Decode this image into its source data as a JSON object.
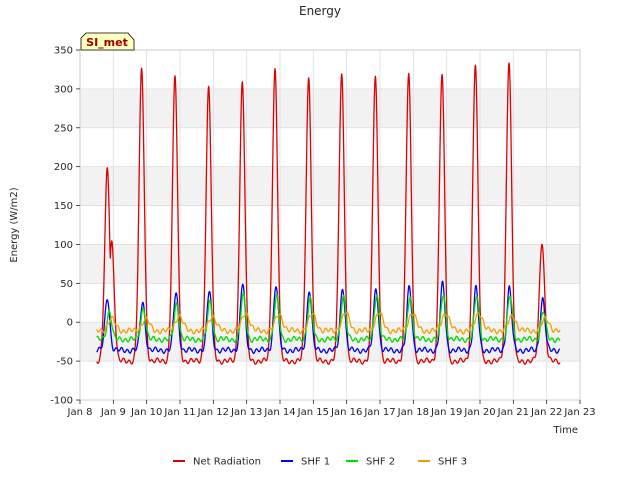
{
  "chart_data": {
    "type": "line",
    "title": "Energy",
    "xlabel": "Time",
    "ylabel": "Energy (W/m2)",
    "station_label": "SI_met",
    "xlim": [
      8,
      23
    ],
    "ylim": [
      -100,
      350
    ],
    "x_ticks": [
      {
        "value": 8,
        "label": "Jan 8"
      },
      {
        "value": 9,
        "label": "Jan 9"
      },
      {
        "value": 10,
        "label": "Jan 10"
      },
      {
        "value": 11,
        "label": "Jan 11"
      },
      {
        "value": 12,
        "label": "Jan 12"
      },
      {
        "value": 13,
        "label": "Jan 13"
      },
      {
        "value": 14,
        "label": "Jan 14"
      },
      {
        "value": 15,
        "label": "Jan 15"
      },
      {
        "value": 16,
        "label": "Jan 16"
      },
      {
        "value": 17,
        "label": "Jan 17"
      },
      {
        "value": 18,
        "label": "Jan 18"
      },
      {
        "value": 19,
        "label": "Jan 19"
      },
      {
        "value": 20,
        "label": "Jan 20"
      },
      {
        "value": 21,
        "label": "Jan 21"
      },
      {
        "value": 22,
        "label": "Jan 22"
      },
      {
        "value": 23,
        "label": "Jan 23"
      }
    ],
    "y_ticks": [
      {
        "value": -100,
        "label": "-100"
      },
      {
        "value": -50,
        "label": "-50"
      },
      {
        "value": 0,
        "label": "0"
      },
      {
        "value": 50,
        "label": "50"
      },
      {
        "value": 100,
        "label": "100"
      },
      {
        "value": 150,
        "label": "150"
      },
      {
        "value": 200,
        "label": "200"
      },
      {
        "value": 250,
        "label": "250"
      },
      {
        "value": 300,
        "label": "300"
      },
      {
        "value": 350,
        "label": "350"
      }
    ],
    "series": [
      {
        "name": "Net Radiation",
        "color": "#dd0000",
        "start": 8.5,
        "end": 22.4,
        "night": -50,
        "width": 0.11,
        "peaks": [
          {
            "day": 8.82,
            "value": 196
          },
          {
            "day": 8.95,
            "value": 104
          },
          {
            "day": 9.85,
            "value": 325
          },
          {
            "day": 10.85,
            "value": 314
          },
          {
            "day": 11.86,
            "value": 301
          },
          {
            "day": 12.87,
            "value": 308
          },
          {
            "day": 13.85,
            "value": 325
          },
          {
            "day": 14.86,
            "value": 313
          },
          {
            "day": 15.85,
            "value": 318
          },
          {
            "day": 16.86,
            "value": 314
          },
          {
            "day": 17.86,
            "value": 318
          },
          {
            "day": 18.86,
            "value": 318
          },
          {
            "day": 19.86,
            "value": 332
          },
          {
            "day": 20.87,
            "value": 336
          },
          {
            "day": 21.86,
            "value": 104
          }
        ]
      },
      {
        "name": "SHF 1",
        "color": "#0000ee",
        "start": 8.5,
        "end": 22.4,
        "night": -36,
        "width": 0.1,
        "peaks": [
          {
            "day": 8.82,
            "value": 32
          },
          {
            "day": 9.88,
            "value": 26
          },
          {
            "day": 10.88,
            "value": 38
          },
          {
            "day": 11.88,
            "value": 40
          },
          {
            "day": 12.88,
            "value": 50
          },
          {
            "day": 13.88,
            "value": 48
          },
          {
            "day": 14.88,
            "value": 42
          },
          {
            "day": 15.88,
            "value": 45
          },
          {
            "day": 16.88,
            "value": 44
          },
          {
            "day": 17.88,
            "value": 46
          },
          {
            "day": 18.88,
            "value": 50
          },
          {
            "day": 19.88,
            "value": 44
          },
          {
            "day": 20.88,
            "value": 44
          },
          {
            "day": 21.88,
            "value": 30
          }
        ]
      },
      {
        "name": "SHF 2",
        "color": "#00dd00",
        "start": 8.5,
        "end": 22.4,
        "night": -22,
        "width": 0.1,
        "peaks": [
          {
            "day": 8.88,
            "value": 14
          },
          {
            "day": 9.9,
            "value": 18
          },
          {
            "day": 10.9,
            "value": 24
          },
          {
            "day": 11.9,
            "value": 26
          },
          {
            "day": 12.9,
            "value": 34
          },
          {
            "day": 13.9,
            "value": 32
          },
          {
            "day": 14.9,
            "value": 30
          },
          {
            "day": 15.9,
            "value": 34
          },
          {
            "day": 16.9,
            "value": 36
          },
          {
            "day": 17.9,
            "value": 34
          },
          {
            "day": 18.9,
            "value": 36
          },
          {
            "day": 19.9,
            "value": 34
          },
          {
            "day": 20.9,
            "value": 34
          },
          {
            "day": 21.9,
            "value": 14
          }
        ]
      },
      {
        "name": "SHF 3",
        "color": "#f0a000",
        "start": 8.5,
        "end": 22.4,
        "night": -11,
        "width": 0.16,
        "peaks": [
          {
            "day": 8.95,
            "value": 4
          },
          {
            "day": 9.97,
            "value": 4
          },
          {
            "day": 10.97,
            "value": 8
          },
          {
            "day": 11.97,
            "value": 8
          },
          {
            "day": 12.97,
            "value": 12
          },
          {
            "day": 13.97,
            "value": 10
          },
          {
            "day": 14.97,
            "value": 10
          },
          {
            "day": 15.97,
            "value": 12
          },
          {
            "day": 16.97,
            "value": 12
          },
          {
            "day": 17.97,
            "value": 12
          },
          {
            "day": 18.97,
            "value": 12
          },
          {
            "day": 19.97,
            "value": 12
          },
          {
            "day": 20.97,
            "value": 8
          },
          {
            "day": 21.97,
            "value": 4
          }
        ]
      }
    ],
    "grid": true,
    "background_bands": true,
    "legend_position": "bottom-center"
  }
}
